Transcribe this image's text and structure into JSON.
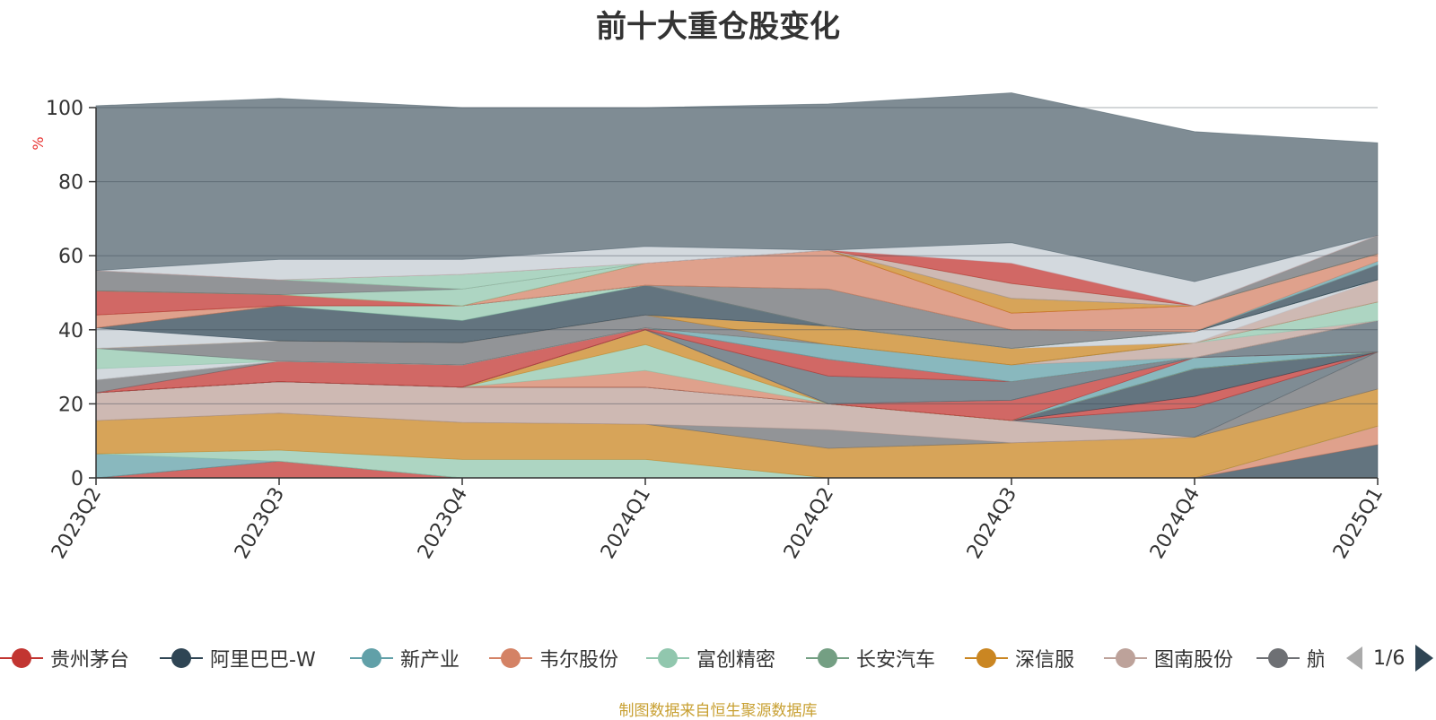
{
  "chart_data": {
    "type": "area",
    "stacked": true,
    "title": "前十大重仓股变化",
    "ylabel": "%",
    "ylim": [
      0,
      100
    ],
    "yticks": [
      0,
      20,
      40,
      60,
      80,
      100
    ],
    "grid": true,
    "legend_position": "bottom",
    "categories": [
      "2023Q2",
      "2023Q3",
      "2023Q4",
      "2024Q1",
      "2024Q2",
      "2024Q3",
      "2024Q4",
      "2025Q1"
    ],
    "series": [
      {
        "name": "贵州茅台",
        "color": "#c23531",
        "values": [
          0,
          4.5,
          0,
          0,
          0,
          0,
          0,
          0
        ]
      },
      {
        "name": "",
        "color": "#2f4554",
        "values": [
          0,
          0,
          0,
          0,
          0,
          0,
          0,
          9
        ]
      },
      {
        "name": "",
        "color": "#d48265",
        "values": [
          0,
          0,
          0,
          0,
          0,
          0,
          0,
          5
        ]
      },
      {
        "name": "",
        "color": "#61a0a8",
        "values": [
          6.5,
          0,
          0,
          0,
          0,
          0,
          0,
          0
        ]
      },
      {
        "name": "",
        "color": "#91c7ae",
        "values": [
          0,
          3,
          5,
          5,
          0,
          0,
          0,
          0
        ]
      },
      {
        "name": "",
        "color": "#ca8622",
        "values": [
          9,
          10,
          10,
          9.5,
          8,
          9.5,
          11,
          10
        ]
      },
      {
        "name": "",
        "color": "#6e7074",
        "values": [
          0,
          0,
          0,
          0,
          5,
          0,
          0,
          10
        ]
      },
      {
        "name": "",
        "color": "#bda29a",
        "values": [
          7.5,
          8.5,
          9.5,
          10,
          7,
          6,
          0,
          0
        ]
      },
      {
        "name": "",
        "color": "#546570",
        "values": [
          0,
          0,
          0,
          0,
          0,
          0,
          8,
          0
        ]
      },
      {
        "name": "",
        "color": "#c23531",
        "values": [
          0,
          0,
          0,
          0,
          0,
          0,
          3,
          0
        ]
      },
      {
        "name": "",
        "color": "#2f4554",
        "values": [
          0,
          0,
          0,
          0,
          0,
          0,
          7.5,
          0
        ]
      },
      {
        "name": "",
        "color": "#d48265",
        "values": [
          0,
          0,
          0,
          4.5,
          0,
          0,
          0,
          0
        ]
      },
      {
        "name": "",
        "color": "#91c7ae",
        "values": [
          0,
          0,
          0,
          7,
          0,
          0,
          0,
          0
        ]
      },
      {
        "name": "",
        "color": "#ca8622",
        "values": [
          0,
          0,
          0,
          4,
          0,
          0,
          0,
          0
        ]
      },
      {
        "name": "",
        "color": "#61a0a8",
        "values": [
          0,
          0,
          0,
          0,
          0,
          0,
          3,
          0
        ]
      },
      {
        "name": "",
        "color": "#c23531",
        "values": [
          0,
          0,
          0,
          0,
          0,
          5.5,
          0,
          0
        ]
      },
      {
        "name": "",
        "color": "#546570",
        "values": [
          0,
          0,
          0,
          0,
          0,
          0,
          0,
          8.5
        ]
      },
      {
        "name": "",
        "color": "#bda29a",
        "values": [
          0,
          0,
          0,
          0,
          0,
          0,
          0,
          0
        ]
      },
      {
        "name": "",
        "color": "#546570",
        "values": [
          0,
          0,
          0,
          0,
          7.5,
          5,
          0,
          0
        ]
      },
      {
        "name": "",
        "color": "#c23531",
        "values": [
          0,
          5.5,
          6,
          0.5,
          4.5,
          0,
          0,
          0
        ]
      },
      {
        "name": "",
        "color": "#6e7074",
        "values": [
          3.5,
          0,
          0,
          0,
          0,
          0,
          0,
          0
        ]
      },
      {
        "name": "",
        "color": "#d48265",
        "values": [
          0,
          0,
          0,
          0,
          0,
          0,
          0,
          0
        ]
      },
      {
        "name": "",
        "color": "#61a0a8",
        "values": [
          0,
          0,
          0,
          0,
          4,
          4.5,
          0,
          0
        ]
      },
      {
        "name": "",
        "color": "#bda29a",
        "values": [
          0,
          0,
          0,
          0,
          0,
          0,
          4,
          0
        ]
      },
      {
        "name": "",
        "color": "#c4ccd3",
        "values": [
          3,
          0,
          0,
          0,
          0,
          0,
          0,
          0
        ]
      },
      {
        "name": "",
        "color": "#91c7ae",
        "values": [
          5.5,
          0,
          0,
          0,
          0,
          0,
          0,
          5
        ]
      },
      {
        "name": "",
        "color": "#6e7074",
        "values": [
          0,
          5.5,
          6,
          3.5,
          0,
          0,
          0,
          0
        ]
      },
      {
        "name": "",
        "color": "#ca8622",
        "values": [
          0,
          0,
          0,
          0,
          5,
          4.5,
          0,
          0
        ]
      },
      {
        "name": "",
        "color": "#bda29a",
        "values": [
          0,
          0,
          0,
          0,
          0,
          0,
          0,
          6
        ]
      },
      {
        "name": "",
        "color": "#c4ccd3",
        "values": [
          5.5,
          0,
          0,
          0,
          0,
          0,
          3,
          0
        ]
      },
      {
        "name": "",
        "color": "#2f4554",
        "values": [
          0,
          9.5,
          6,
          8,
          0,
          0,
          0,
          0
        ]
      },
      {
        "name": "",
        "color": "#91c7ae",
        "values": [
          0,
          0,
          4,
          0,
          0,
          0,
          0,
          0
        ]
      },
      {
        "name": "",
        "color": "#6e7074",
        "values": [
          0,
          0,
          0,
          0,
          10,
          5,
          0,
          0
        ]
      },
      {
        "name": "",
        "color": "#2f4554",
        "values": [
          0,
          0,
          0,
          0,
          0,
          0,
          0,
          4
        ]
      },
      {
        "name": "",
        "color": "#d48265",
        "values": [
          3.5,
          0,
          0,
          0,
          0,
          0,
          0,
          0
        ]
      },
      {
        "name": "",
        "color": "#61a0a8",
        "values": [
          0,
          0,
          0,
          0,
          0,
          0,
          0,
          1
        ]
      },
      {
        "name": "",
        "color": "#d48265",
        "values": [
          0,
          0,
          0,
          6,
          10.5,
          4.5,
          7,
          2
        ]
      },
      {
        "name": "",
        "color": "#c23531",
        "values": [
          6.5,
          3,
          0,
          0,
          0,
          0,
          0,
          0
        ]
      },
      {
        "name": "",
        "color": "#ca8622",
        "values": [
          0,
          0,
          0,
          0,
          0,
          4,
          0,
          0
        ]
      },
      {
        "name": "",
        "color": "#91c7ae",
        "values": [
          0,
          0,
          4.5,
          0,
          0,
          0,
          0,
          0
        ]
      },
      {
        "name": "",
        "color": "#6e7074",
        "values": [
          5.5,
          4,
          0,
          0,
          0,
          0,
          0,
          5
        ]
      },
      {
        "name": "",
        "color": "#bda29a",
        "values": [
          0,
          0,
          0,
          0,
          0,
          4,
          0,
          0
        ]
      },
      {
        "name": "",
        "color": "#91c7ae",
        "values": [
          0,
          0,
          4,
          0,
          0,
          0,
          0,
          0
        ]
      },
      {
        "name": "",
        "color": "#c23531",
        "values": [
          0,
          0,
          0,
          0,
          0,
          5.5,
          0,
          0
        ]
      },
      {
        "name": "",
        "color": "#c4ccd3",
        "values": [
          0,
          5.5,
          4,
          4.5,
          0,
          5.5,
          6.5,
          0
        ]
      },
      {
        "name": "",
        "color": "#546570",
        "values": [
          44.5,
          43.5,
          41,
          37.5,
          39.5,
          40.5,
          40.5,
          25
        ]
      }
    ]
  },
  "legend": {
    "items": [
      {
        "name": "贵州茅台",
        "color": "#c23531"
      },
      {
        "name": "阿里巴巴-W",
        "color": "#2f4554"
      },
      {
        "name": "新产业",
        "color": "#61a0a8"
      },
      {
        "name": "韦尔股份",
        "color": "#d48265"
      },
      {
        "name": "富创精密",
        "color": "#91c7ae"
      },
      {
        "name": "长安汽车",
        "color": "#749f83"
      },
      {
        "name": "深信服",
        "color": "#ca8622"
      },
      {
        "name": "图南股份",
        "color": "#bda29a"
      },
      {
        "name": "航",
        "color": "#6e7074"
      }
    ],
    "page": "1/6"
  },
  "source_note": "制图数据来自恒生聚源数据库"
}
